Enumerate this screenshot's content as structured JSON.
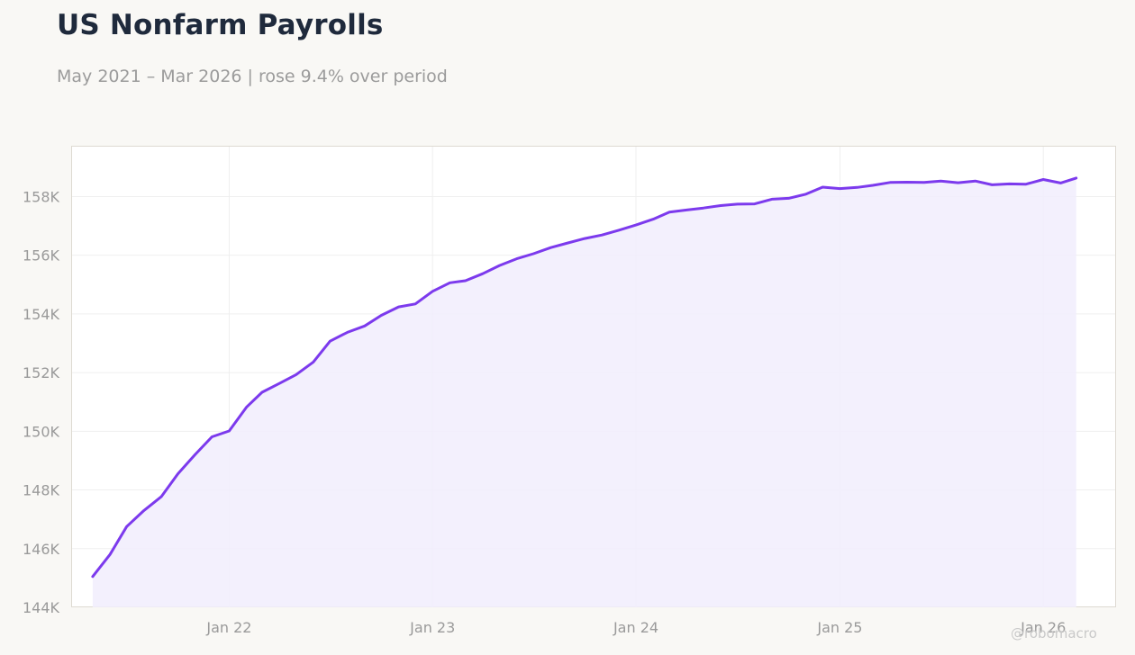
{
  "title": "US Nonfarm Payrolls",
  "subtitle": "May 2021 – Mar 2026 | rose 9.4% over period",
  "watermark": "@robomacro",
  "colors": {
    "line": "#7c3aed",
    "fill": "#f1edfd",
    "background": "#f9f8f5",
    "plot_background": "#ffffff",
    "grid": "#efefef",
    "title": "#1f2a3c",
    "muted_text": "#9a9a9a"
  },
  "chart_data": {
    "type": "area",
    "title": "US Nonfarm Payrolls",
    "subtitle": "May 2021 – Mar 2026 | rose 9.4% over period",
    "xlabel": "",
    "ylabel": "",
    "y_unit": "thousands",
    "ylim": [
      144000,
      159700
    ],
    "xlim": [
      "2021-03-25",
      "2026-05-10"
    ],
    "grid": true,
    "legend": "none",
    "x_ticks": [
      {
        "label": "Jan 22",
        "date": "2022-01-01"
      },
      {
        "label": "Jan 23",
        "date": "2023-01-01"
      },
      {
        "label": "Jan 24",
        "date": "2024-01-01"
      },
      {
        "label": "Jan 25",
        "date": "2025-01-01"
      },
      {
        "label": "Jan 26",
        "date": "2026-01-01"
      }
    ],
    "y_ticks": [
      {
        "label": "144K",
        "value": 144000
      },
      {
        "label": "146K",
        "value": 146000
      },
      {
        "label": "148K",
        "value": 148000
      },
      {
        "label": "150K",
        "value": 150000
      },
      {
        "label": "152K",
        "value": 152000
      },
      {
        "label": "154K",
        "value": 154000
      },
      {
        "label": "156K",
        "value": 156000
      },
      {
        "label": "158K",
        "value": 158000
      }
    ],
    "series": [
      {
        "x": [
          "2021-05",
          "2021-06",
          "2021-07",
          "2021-08",
          "2021-09",
          "2021-10",
          "2021-11",
          "2021-12",
          "2022-01",
          "2022-02",
          "2022-03",
          "2022-04",
          "2022-05",
          "2022-06",
          "2022-07",
          "2022-08",
          "2022-09",
          "2022-10",
          "2022-11",
          "2022-12",
          "2023-01",
          "2023-02",
          "2023-03",
          "2023-04",
          "2023-05",
          "2023-06",
          "2023-07",
          "2023-08",
          "2023-09",
          "2023-10",
          "2023-11",
          "2023-12",
          "2024-01",
          "2024-02",
          "2024-03",
          "2024-04",
          "2024-05",
          "2024-06",
          "2024-07",
          "2024-08",
          "2024-09",
          "2024-10",
          "2024-11",
          "2024-12",
          "2025-01",
          "2025-02",
          "2025-03",
          "2025-04",
          "2025-05",
          "2025-06",
          "2025-07",
          "2025-08",
          "2025-09",
          "2025-10",
          "2025-11",
          "2025-12",
          "2026-01",
          "2026-02",
          "2026-03"
        ],
        "y": [
          145050,
          145800,
          146750,
          147300,
          147770,
          148550,
          149210,
          149810,
          150010,
          150820,
          151330,
          151630,
          151930,
          152360,
          153070,
          153370,
          153590,
          153950,
          154240,
          154340,
          154770,
          155060,
          155130,
          155370,
          155650,
          155880,
          156050,
          156260,
          156420,
          156570,
          156690,
          156850,
          157030,
          157230,
          157470,
          157540,
          157610,
          157690,
          157740,
          157750,
          157910,
          157940,
          158080,
          158320,
          158270,
          158310,
          158380,
          158480,
          158490,
          158480,
          158530,
          158470,
          158530,
          158400,
          158430,
          158420,
          158580,
          158460,
          158630
        ]
      }
    ]
  }
}
